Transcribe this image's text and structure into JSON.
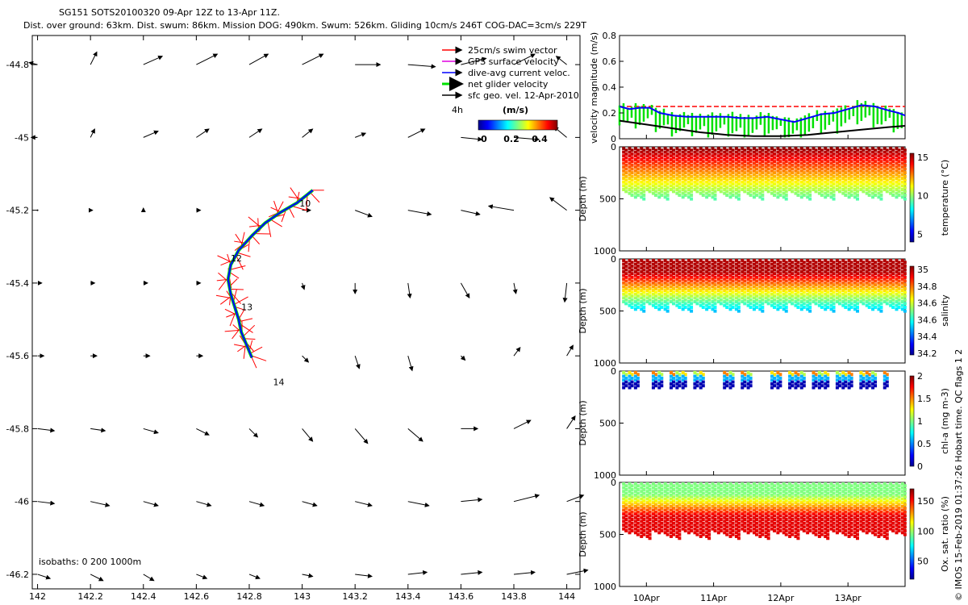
{
  "chart_data": {
    "type": "figure",
    "title": "SG151 SOTS20100320 09-Apr 12Z to 13-Apr 11Z.",
    "subtitle": "Dist. over ground: 63km. Dist. swum: 86km. Mission DOG: 490km. Swum: 526km. Gliding 10cm/s 246T COG-DAC=3cm/s 229T",
    "side_label": "© IMOS 15-Feb-2019 01:37:26 Hobart time. QC flags 1  2",
    "map": {
      "x_ticks": [
        "142",
        "142.2",
        "142.4",
        "142.6",
        "142.8",
        "143",
        "143.2",
        "143.4",
        "143.6",
        "143.8",
        "144"
      ],
      "y_ticks": [
        "-44.8",
        "-45",
        "-45.2",
        "-45.4",
        "-45.6",
        "-45.8",
        "-46",
        "-46.2"
      ],
      "xlim": [
        141.98,
        144.05
      ],
      "ylim": [
        -46.24,
        -44.72
      ],
      "isobaths_label": "isobaths: 0   200  1000m",
      "legend": [
        {
          "label": "25cm/s swim vector",
          "color": "#ff0000"
        },
        {
          "label": "GPS surface velocity",
          "color": "#e000e0"
        },
        {
          "label": "dive-avg current veloc.",
          "color": "#0000ff"
        },
        {
          "label": "net glider velocity",
          "color": "#00e000"
        },
        {
          "label": "sfc geo. vel. 12-Apr-2010",
          "color": "#000000"
        }
      ],
      "scale_label": "4h",
      "colorbar_title": "(m/s)",
      "colorbar_ticks": [
        "0",
        "0.2",
        "0.4"
      ],
      "day_labels": [
        {
          "text": "10",
          "lon": 142.99,
          "lat": -45.19
        },
        {
          "text": "12",
          "lon": 142.73,
          "lat": -45.34
        },
        {
          "text": "13",
          "lon": 142.77,
          "lat": -45.475
        },
        {
          "text": "14",
          "lon": 142.89,
          "lat": -45.68
        }
      ],
      "track": [
        [
          143.04,
          -45.145
        ],
        [
          142.98,
          -45.18
        ],
        [
          142.92,
          -45.205
        ],
        [
          142.86,
          -45.235
        ],
        [
          142.81,
          -45.27
        ],
        [
          142.76,
          -45.31
        ],
        [
          142.73,
          -45.35
        ],
        [
          142.72,
          -45.39
        ],
        [
          142.73,
          -45.43
        ],
        [
          142.745,
          -45.465
        ],
        [
          142.76,
          -45.5
        ],
        [
          142.77,
          -45.535
        ],
        [
          142.79,
          -45.57
        ],
        [
          142.81,
          -45.605
        ]
      ],
      "geo_vectors": [
        [
          142,
          -44.8,
          -0.04,
          0.01
        ],
        [
          142.2,
          -44.8,
          0.03,
          0.06
        ],
        [
          142.4,
          -44.8,
          0.09,
          0.04
        ],
        [
          142.6,
          -44.8,
          0.1,
          0.05
        ],
        [
          142.8,
          -44.8,
          0.09,
          0.05
        ],
        [
          143,
          -44.8,
          0.1,
          0.05
        ],
        [
          143.2,
          -44.8,
          0.12,
          0.0
        ],
        [
          143.4,
          -44.8,
          0.13,
          -0.01
        ],
        [
          143.6,
          -44.8,
          0.12,
          0.03
        ],
        [
          143.8,
          -44.8,
          0.1,
          0.05
        ],
        [
          144,
          -44.8,
          -0.05,
          0.04
        ],
        [
          142,
          -45,
          -0.03,
          0.0
        ],
        [
          142.2,
          -45,
          0.02,
          0.04
        ],
        [
          142.4,
          -45,
          0.07,
          0.03
        ],
        [
          142.6,
          -45,
          0.06,
          0.04
        ],
        [
          142.8,
          -45,
          0.06,
          0.04
        ],
        [
          143,
          -45,
          0.05,
          0.04
        ],
        [
          143.2,
          -45,
          0.05,
          0.02
        ],
        [
          143.4,
          -45,
          0.08,
          0.04
        ],
        [
          143.6,
          -45,
          0.1,
          -0.01
        ],
        [
          143.8,
          -45,
          0.12,
          -0.01
        ],
        [
          144,
          -45,
          -0.06,
          0.05
        ],
        [
          142,
          -45.2,
          0.0,
          0.0
        ],
        [
          142.2,
          -45.2,
          0.01,
          0.0
        ],
        [
          142.4,
          -45.2,
          0.0,
          0.01
        ],
        [
          142.6,
          -45.2,
          0.02,
          0.0
        ],
        [
          143,
          -45.2,
          0.04,
          0.0
        ],
        [
          143.2,
          -45.2,
          0.08,
          -0.03
        ],
        [
          143.4,
          -45.2,
          0.11,
          -0.02
        ],
        [
          143.6,
          -45.2,
          0.09,
          -0.02
        ],
        [
          143.8,
          -45.2,
          -0.12,
          0.02
        ],
        [
          144,
          -45.2,
          -0.08,
          0.06
        ],
        [
          142,
          -45.4,
          0.02,
          0.0
        ],
        [
          142.2,
          -45.4,
          0.02,
          0.0
        ],
        [
          142.4,
          -45.4,
          0.02,
          0.0
        ],
        [
          142.6,
          -45.4,
          0.02,
          0.0
        ],
        [
          143,
          -45.4,
          0.01,
          -0.03
        ],
        [
          143.2,
          -45.4,
          0.0,
          -0.05
        ],
        [
          143.4,
          -45.4,
          0.01,
          -0.07
        ],
        [
          143.6,
          -45.4,
          0.04,
          -0.07
        ],
        [
          143.8,
          -45.4,
          0.01,
          -0.05
        ],
        [
          144,
          -45.4,
          -0.01,
          -0.09
        ],
        [
          142,
          -45.6,
          0.03,
          0.0
        ],
        [
          142.2,
          -45.6,
          0.03,
          0.0
        ],
        [
          142.4,
          -45.6,
          0.03,
          0.0
        ],
        [
          142.6,
          -45.6,
          0.03,
          0.0
        ],
        [
          143,
          -45.6,
          0.03,
          -0.03
        ],
        [
          143.2,
          -45.6,
          0.02,
          -0.06
        ],
        [
          143.4,
          -45.6,
          0.02,
          -0.07
        ],
        [
          143.6,
          -45.6,
          0.02,
          -0.02
        ],
        [
          143.8,
          -45.6,
          0.03,
          0.04
        ],
        [
          144,
          -45.6,
          0.03,
          0.05
        ],
        [
          142,
          -45.8,
          0.08,
          -0.01
        ],
        [
          142.2,
          -45.8,
          0.07,
          -0.01
        ],
        [
          142.4,
          -45.8,
          0.07,
          -0.02
        ],
        [
          142.6,
          -45.8,
          0.06,
          -0.03
        ],
        [
          142.8,
          -45.8,
          0.04,
          -0.04
        ],
        [
          143,
          -45.8,
          0.05,
          -0.06
        ],
        [
          143.2,
          -45.8,
          0.06,
          -0.07
        ],
        [
          143.4,
          -45.8,
          0.07,
          -0.06
        ],
        [
          143.6,
          -45.8,
          0.08,
          0.0
        ],
        [
          143.8,
          -45.8,
          0.08,
          0.04
        ],
        [
          144,
          -45.8,
          0.04,
          0.06
        ],
        [
          142,
          -46,
          0.08,
          -0.01
        ],
        [
          142.2,
          -46,
          0.09,
          -0.02
        ],
        [
          142.4,
          -46,
          0.07,
          -0.02
        ],
        [
          142.6,
          -46,
          0.07,
          -0.02
        ],
        [
          142.8,
          -46,
          0.07,
          -0.02
        ],
        [
          143,
          -46,
          0.07,
          -0.02
        ],
        [
          143.2,
          -46,
          0.08,
          -0.02
        ],
        [
          143.4,
          -46,
          0.1,
          -0.02
        ],
        [
          143.6,
          -46,
          0.1,
          0.01
        ],
        [
          143.8,
          -46,
          0.12,
          0.03
        ],
        [
          144,
          -46,
          0.08,
          0.03
        ],
        [
          142,
          -46.2,
          0.06,
          -0.02
        ],
        [
          142.2,
          -46.2,
          0.06,
          -0.03
        ],
        [
          142.4,
          -46.2,
          0.05,
          -0.03
        ],
        [
          142.6,
          -46.2,
          0.05,
          -0.02
        ],
        [
          142.8,
          -46.2,
          0.05,
          -0.02
        ],
        [
          143,
          -46.2,
          0.05,
          -0.01
        ],
        [
          143.2,
          -46.2,
          0.08,
          -0.01
        ],
        [
          143.4,
          -46.2,
          0.09,
          0.01
        ],
        [
          143.6,
          -46.2,
          0.1,
          0.01
        ],
        [
          143.8,
          -46.2,
          0.1,
          0.01
        ],
        [
          144,
          -46.2,
          0.1,
          0.02
        ]
      ]
    },
    "velocity_panel": {
      "ylabel": "velocity magnitude (m/s)",
      "y_ticks": [
        "0",
        "0.2",
        "0.4",
        "0.6",
        "0.8"
      ],
      "ylim": [
        0,
        0.8
      ],
      "time_range_days": [
        9.6,
        13.85
      ],
      "swim_speed": 0.25,
      "dive_avg": [
        [
          9.6,
          0.25
        ],
        [
          9.75,
          0.23
        ],
        [
          9.9,
          0.24
        ],
        [
          10.05,
          0.24
        ],
        [
          10.2,
          0.2
        ],
        [
          10.4,
          0.18
        ],
        [
          10.6,
          0.17
        ],
        [
          10.8,
          0.17
        ],
        [
          11.0,
          0.17
        ],
        [
          11.2,
          0.17
        ],
        [
          11.4,
          0.16
        ],
        [
          11.6,
          0.16
        ],
        [
          11.8,
          0.17
        ],
        [
          12.0,
          0.15
        ],
        [
          12.2,
          0.13
        ],
        [
          12.4,
          0.16
        ],
        [
          12.6,
          0.19
        ],
        [
          12.8,
          0.2
        ],
        [
          13.0,
          0.23
        ],
        [
          13.2,
          0.26
        ],
        [
          13.4,
          0.25
        ],
        [
          13.6,
          0.22
        ],
        [
          13.75,
          0.2
        ],
        [
          13.85,
          0.18
        ]
      ],
      "surface_geo": [
        [
          9.6,
          0.14
        ],
        [
          10.0,
          0.11
        ],
        [
          10.4,
          0.08
        ],
        [
          10.8,
          0.05
        ],
        [
          11.2,
          0.03
        ],
        [
          11.6,
          0.02
        ],
        [
          12.0,
          0.02
        ],
        [
          12.4,
          0.03
        ],
        [
          12.8,
          0.05
        ],
        [
          13.2,
          0.07
        ],
        [
          13.6,
          0.09
        ],
        [
          13.85,
          0.1
        ]
      ]
    },
    "depth_panels": [
      {
        "name": "temperature",
        "label": "temperature (°C)",
        "cb_ticks": [
          "5",
          "10",
          "15"
        ],
        "range": [
          4,
          15.5
        ]
      },
      {
        "name": "salinity",
        "label": "salinity",
        "cb_ticks": [
          "34.2",
          "34.4",
          "34.6",
          "34.6",
          "34.8",
          "35"
        ],
        "range": [
          34.15,
          35.1
        ]
      },
      {
        "name": "chl-a",
        "label": "chl-a (mg m-3)",
        "cb_ticks": [
          "0",
          "0.5",
          "1",
          "1.5",
          "2"
        ],
        "range": [
          0,
          2
        ]
      },
      {
        "name": "oxygen",
        "label": "Ox. sat. ratio (%)",
        "cb_ticks": [
          "50",
          "100",
          "150"
        ],
        "range": [
          20,
          170
        ]
      }
    ],
    "depth_label": "Depth (m)",
    "depth_ticks": [
      "0",
      "500",
      "1000"
    ],
    "time_ticks": [
      "10Apr",
      "11Apr",
      "12Apr",
      "13Apr"
    ]
  }
}
